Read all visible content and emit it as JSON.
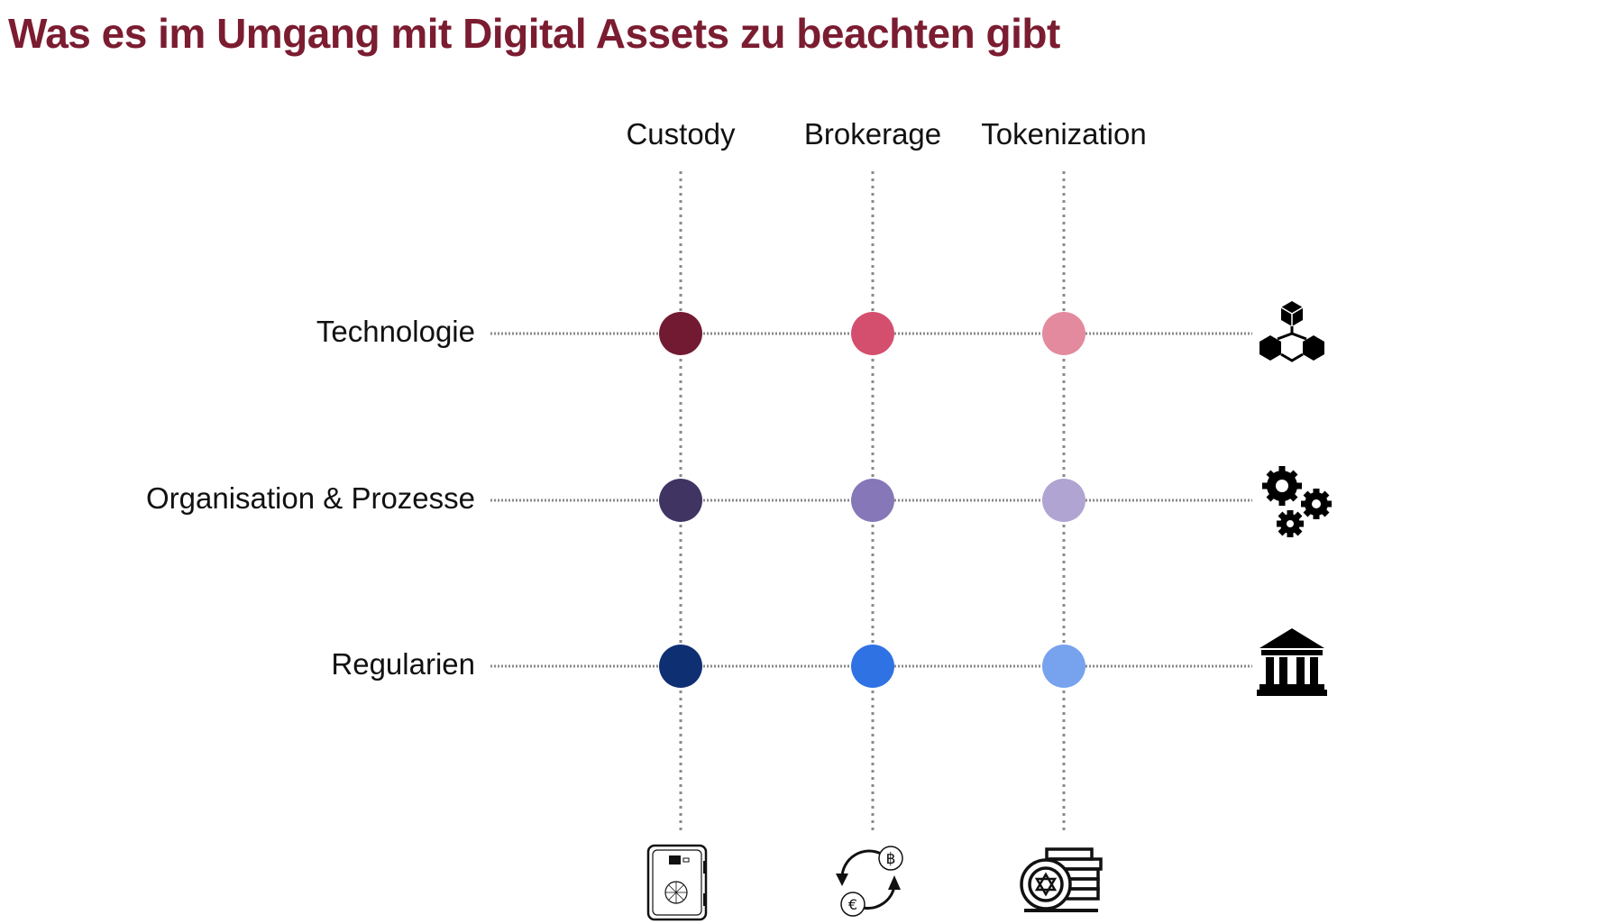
{
  "title": "Was es im Umgang mit Digital Assets zu beachten gibt",
  "columns": [
    {
      "label": "Custody",
      "icon": "safe-icon"
    },
    {
      "label": "Brokerage",
      "icon": "currency-exchange-icon"
    },
    {
      "label": "Tokenization",
      "icon": "coin-stack-icon"
    }
  ],
  "rows": [
    {
      "label": "Technologie",
      "icon": "blockchain-cubes-icon",
      "colors": [
        "#731a33",
        "#d44f6e",
        "#e38a9e"
      ]
    },
    {
      "label": "Organisation & Prozesse",
      "icon": "gears-icon",
      "colors": [
        "#3f3462",
        "#8577b8",
        "#b0a4d2"
      ]
    },
    {
      "label": "Regularien",
      "icon": "bank-icon",
      "colors": [
        "#0f2f73",
        "#2f72e4",
        "#77a2ee"
      ]
    }
  ],
  "colors": {
    "title": "#7b1c31",
    "line": "#8a8a8a"
  }
}
